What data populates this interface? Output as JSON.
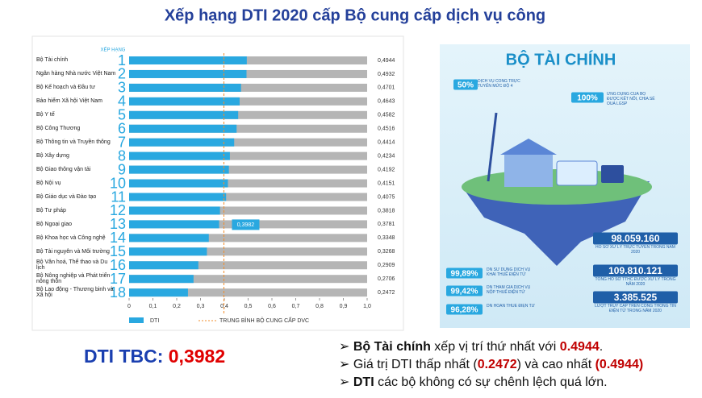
{
  "slide": {
    "title": "Xếp hạng DTI 2020 cấp Bộ cung cấp dịch vụ công",
    "tbc_label": "DTI TBC:",
    "tbc_value": "0,3982",
    "bullets": [
      [
        "Bộ Tài chính",
        " xếp vị trí thứ nhất với ",
        "0.4944",
        "."
      ],
      [
        "Giá trị DTI thấp nhất (",
        "0.2472",
        ") và cao nhất ",
        "(0.4944)"
      ],
      [
        "DTI",
        " các bộ không có sự chênh lệch quá lớn."
      ]
    ]
  },
  "infographic": {
    "title": "BỘ TÀI CHÍNH",
    "stats": [
      {
        "value": "50%",
        "desc": "DỊCH VỤ CÔNG TRỰC TUYẾN MỨC ĐỘ 4"
      },
      {
        "value": "100%",
        "desc": "ỨNG DỤNG CỦA BỘ ĐƯỢC KẾT NỐI, CHIA SẺ QUA LGSP"
      },
      {
        "value": "98.059.160",
        "desc": "HỒ SƠ XỬ LÝ TRỰC TUYẾN TRONG NĂM 2020"
      },
      {
        "value": "109.810.121",
        "desc": "TỔNG HỒ SƠ TTHC ĐƯỢC XỬ LÝ TRONG NĂM 2020"
      },
      {
        "value": "3.385.525",
        "desc": "LƯỢT TRUY CẬP TRÊN CỔNG THÔNG TIN ĐIỆN TỬ TRONG NĂM 2020"
      },
      {
        "value": "99,89%",
        "desc": "DN SỬ DỤNG DỊCH VỤ KHAI THUẾ ĐIỆN TỬ"
      },
      {
        "value": "99,42%",
        "desc": "DN THAM GIA DỊCH VỤ NỘP THUẾ ĐIỆN TỬ"
      },
      {
        "value": "96,28%",
        "desc": "DN HOÀN THUẾ ĐIỆN TỬ"
      }
    ]
  },
  "chart_data": {
    "type": "bar",
    "orientation": "horizontal",
    "rank_header": "XẾP HẠNG",
    "categories": [
      "Bộ Tài chính",
      "Ngân hàng Nhà nước Việt Nam",
      "Bộ Kế hoạch và Đầu tư",
      "Bảo hiểm Xã hội Việt Nam",
      "Bộ Y tế",
      "Bộ Công Thương",
      "Bộ Thông tin và Truyền thông",
      "Bộ Xây dựng",
      "Bộ Giao thông vận tải",
      "Bộ Nội vụ",
      "Bộ Giáo dục và Đào tạo",
      "Bộ Tư pháp",
      "Bộ Ngoại giao",
      "Bộ Khoa học và Công nghệ",
      "Bộ Tài nguyên và Môi trường",
      "Bộ Văn hoá, Thể thao và Du lịch",
      "Bộ Nông nghiệp và Phát triển nông thôn",
      "Bộ Lao động - Thương binh và Xã hội"
    ],
    "ranks": [
      1,
      2,
      3,
      4,
      5,
      6,
      7,
      8,
      9,
      10,
      11,
      12,
      13,
      14,
      15,
      16,
      17,
      18
    ],
    "series": [
      {
        "name": "DTI",
        "color": "#29a8e0",
        "values": [
          0.4944,
          0.4932,
          0.4701,
          0.4643,
          0.4582,
          0.4516,
          0.4414,
          0.4234,
          0.4192,
          0.4151,
          0.4075,
          0.3818,
          0.3781,
          0.3348,
          0.3268,
          0.2909,
          0.2706,
          0.2472
        ],
        "value_labels": [
          "0,4944",
          "0,4932",
          "0,4701",
          "0,4643",
          "0,4582",
          "0,4516",
          "0,4414",
          "0,4234",
          "0,4192",
          "0,4151",
          "0,4075",
          "0,3818",
          "0,3781",
          "0,3348",
          "0,3268",
          "0,2909",
          "0,2706",
          "0,2472"
        ]
      }
    ],
    "average": {
      "name": "TRUNG BÌNH BỘ CUNG CẤP DVC",
      "value": 0.3982,
      "label": "0,3982",
      "color": "#f28c28"
    },
    "xlim": [
      0,
      1
    ],
    "xticks": [
      0,
      {
        "value": 0.1,
        "label": "0,1"
      },
      {
        "value": 0.2,
        "label": "0,2"
      },
      {
        "value": 0.3,
        "label": "0,3"
      },
      {
        "value": 0.4,
        "label": "0,4"
      },
      {
        "value": 0.5,
        "label": "0,5"
      },
      {
        "value": 0.6,
        "label": "0,6"
      },
      {
        "value": 0.7,
        "label": "0,7"
      },
      {
        "value": 0.8,
        "label": "0,8"
      },
      {
        "value": 0.9,
        "label": "0,9"
      },
      {
        "value": 1,
        "label": "1,0"
      }
    ],
    "remainder_color": "#b5b5b5"
  }
}
